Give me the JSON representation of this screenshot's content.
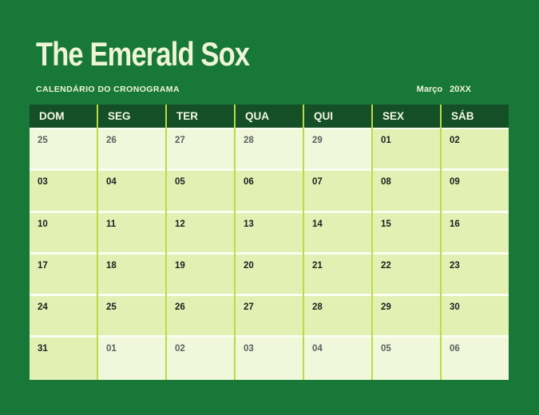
{
  "header": {
    "title": "The Emerald Sox",
    "subtitle": "CALENDÁRIO DO CRONOGRAMA",
    "month": "Março",
    "year": "20XX"
  },
  "colors": {
    "background": "#187838",
    "header_dark": "#144f27",
    "cell_current": "#e3f0b4",
    "cell_other": "#f0f7da",
    "separator": "#b9dd41",
    "row_line": "#fbfdf0",
    "title_text": "#eef5d9",
    "date_current_text": "#1e1e1e",
    "date_other_text": "#5d615f"
  },
  "calendar": {
    "day_headers": [
      "DOM",
      "SEG",
      "TER",
      "QUA",
      "QUI",
      "SEX",
      "SÁB"
    ],
    "weeks": [
      {
        "days": [
          {
            "value": "25",
            "in_month": false
          },
          {
            "value": "26",
            "in_month": false
          },
          {
            "value": "27",
            "in_month": false
          },
          {
            "value": "28",
            "in_month": false
          },
          {
            "value": "29",
            "in_month": false
          },
          {
            "value": "01",
            "in_month": true
          },
          {
            "value": "02",
            "in_month": true
          }
        ]
      },
      {
        "days": [
          {
            "value": "03",
            "in_month": true
          },
          {
            "value": "04",
            "in_month": true
          },
          {
            "value": "05",
            "in_month": true
          },
          {
            "value": "06",
            "in_month": true
          },
          {
            "value": "07",
            "in_month": true
          },
          {
            "value": "08",
            "in_month": true
          },
          {
            "value": "09",
            "in_month": true
          }
        ]
      },
      {
        "days": [
          {
            "value": "10",
            "in_month": true
          },
          {
            "value": "11",
            "in_month": true
          },
          {
            "value": "12",
            "in_month": true
          },
          {
            "value": "13",
            "in_month": true
          },
          {
            "value": "14",
            "in_month": true
          },
          {
            "value": "15",
            "in_month": true
          },
          {
            "value": "16",
            "in_month": true
          }
        ]
      },
      {
        "days": [
          {
            "value": "17",
            "in_month": true
          },
          {
            "value": "18",
            "in_month": true
          },
          {
            "value": "19",
            "in_month": true
          },
          {
            "value": "20",
            "in_month": true
          },
          {
            "value": "21",
            "in_month": true
          },
          {
            "value": "22",
            "in_month": true
          },
          {
            "value": "23",
            "in_month": true
          }
        ]
      },
      {
        "days": [
          {
            "value": "24",
            "in_month": true
          },
          {
            "value": "25",
            "in_month": true
          },
          {
            "value": "26",
            "in_month": true
          },
          {
            "value": "27",
            "in_month": true
          },
          {
            "value": "28",
            "in_month": true
          },
          {
            "value": "29",
            "in_month": true
          },
          {
            "value": "30",
            "in_month": true
          }
        ]
      },
      {
        "days": [
          {
            "value": "31",
            "in_month": true
          },
          {
            "value": "01",
            "in_month": false
          },
          {
            "value": "02",
            "in_month": false
          },
          {
            "value": "03",
            "in_month": false
          },
          {
            "value": "04",
            "in_month": false
          },
          {
            "value": "05",
            "in_month": false
          },
          {
            "value": "06",
            "in_month": false
          }
        ]
      }
    ]
  }
}
